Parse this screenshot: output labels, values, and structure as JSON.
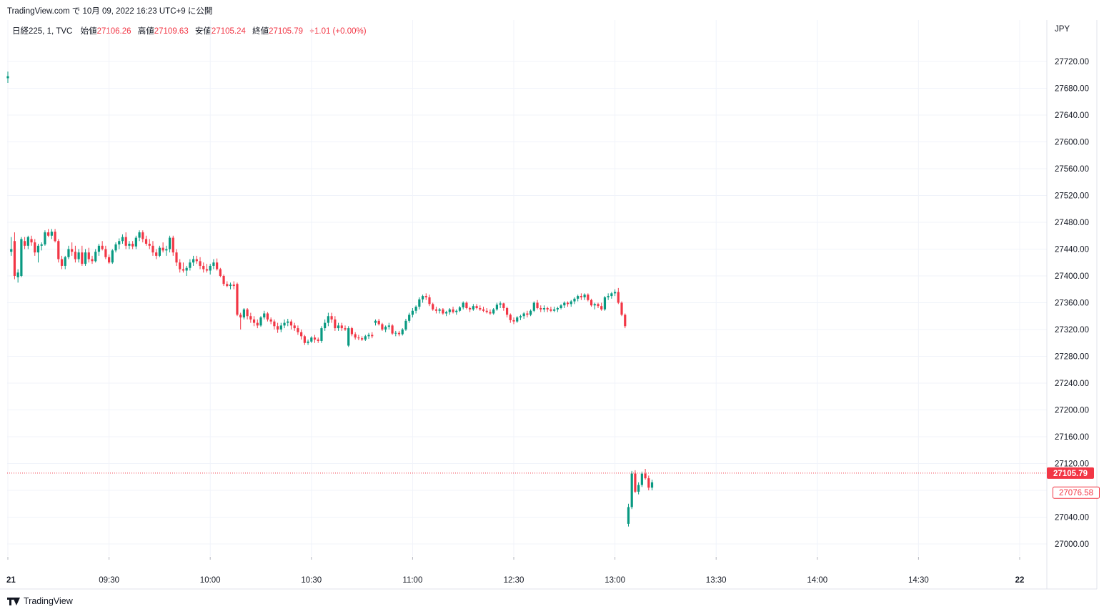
{
  "header": {
    "publish_line": "TradingView.com で 10月 09, 2022 16:23 UTC+9 に公開"
  },
  "legend": {
    "symbol": "日経225, 1, TVC",
    "open_label": "始値",
    "open_value": "27106.26",
    "high_label": "高値",
    "high_value": "27109.63",
    "low_label": "安値",
    "low_value": "27105.24",
    "close_label": "終値",
    "close_value": "27105.79",
    "change": "+1.01 (+0.00%)"
  },
  "axis": {
    "currency": "JPY"
  },
  "footer": {
    "brand": "TradingView"
  },
  "colors": {
    "up": "#089981",
    "down": "#f23645",
    "grid": "#f0f3fa",
    "text": "#131722"
  },
  "chart_data": {
    "type": "candlestick",
    "ylim": [
      26980,
      27760
    ],
    "y_ticks": [
      "27000.00",
      "27040.00",
      "27080.00",
      "27120.00",
      "27160.00",
      "27200.00",
      "27240.00",
      "27280.00",
      "27320.00",
      "27360.00",
      "27400.00",
      "27440.00",
      "27480.00",
      "27520.00",
      "27560.00",
      "27600.00",
      "27640.00",
      "27680.00",
      "27720.00"
    ],
    "x_ticks": [
      {
        "label": "21",
        "pos": 0,
        "bold": true
      },
      {
        "label": "09:30",
        "pos": 30
      },
      {
        "label": "10:00",
        "pos": 60
      },
      {
        "label": "10:30",
        "pos": 90
      },
      {
        "label": "11:00",
        "pos": 120
      },
      {
        "label": "12:30",
        "pos": 150
      },
      {
        "label": "13:00",
        "pos": 180
      },
      {
        "label": "13:30",
        "pos": 210
      },
      {
        "label": "14:00",
        "pos": 240
      },
      {
        "label": "14:30",
        "pos": 270
      },
      {
        "label": "22",
        "pos": 300,
        "bold": true
      }
    ],
    "last_price": {
      "value": 27105.79,
      "label": "27105.79"
    },
    "prev_close": {
      "value": 27076.58,
      "label": "27076.58"
    },
    "candles": [
      [
        27695,
        27705,
        27688,
        27698
      ],
      [
        27436,
        27458,
        27430,
        27440
      ],
      [
        27452,
        27465,
        27395,
        27400
      ],
      [
        27398,
        27410,
        27390,
        27405
      ],
      [
        27400,
        27458,
        27398,
        27455
      ],
      [
        27452,
        27458,
        27440,
        27445
      ],
      [
        27445,
        27460,
        27440,
        27458
      ],
      [
        27455,
        27460,
        27445,
        27450
      ],
      [
        27450,
        27455,
        27430,
        27435
      ],
      [
        27435,
        27448,
        27420,
        27445
      ],
      [
        27445,
        27450,
        27438,
        27447
      ],
      [
        27447,
        27468,
        27445,
        27465
      ],
      [
        27465,
        27470,
        27458,
        27460
      ],
      [
        27460,
        27470,
        27455,
        27466
      ],
      [
        27466,
        27470,
        27450,
        27452
      ],
      [
        27452,
        27455,
        27420,
        27425
      ],
      [
        27425,
        27430,
        27410,
        27415
      ],
      [
        27415,
        27430,
        27410,
        27428
      ],
      [
        27428,
        27445,
        27425,
        27440
      ],
      [
        27440,
        27450,
        27430,
        27436
      ],
      [
        27436,
        27445,
        27420,
        27425
      ],
      [
        27425,
        27440,
        27420,
        27435
      ],
      [
        27435,
        27445,
        27415,
        27418
      ],
      [
        27418,
        27440,
        27415,
        27435
      ],
      [
        27435,
        27442,
        27420,
        27425
      ],
      [
        27425,
        27430,
        27418,
        27422
      ],
      [
        27422,
        27440,
        27420,
        27436
      ],
      [
        27436,
        27448,
        27430,
        27445
      ],
      [
        27445,
        27452,
        27438,
        27440
      ],
      [
        27440,
        27445,
        27425,
        27428
      ],
      [
        27428,
        27432,
        27418,
        27420
      ],
      [
        27420,
        27440,
        27418,
        27438
      ],
      [
        27438,
        27450,
        27435,
        27447
      ],
      [
        27447,
        27456,
        27440,
        27452
      ],
      [
        27452,
        27462,
        27448,
        27458
      ],
      [
        27458,
        27465,
        27440,
        27445
      ],
      [
        27445,
        27452,
        27440,
        27448
      ],
      [
        27448,
        27452,
        27440,
        27444
      ],
      [
        27444,
        27460,
        27440,
        27457
      ],
      [
        27457,
        27468,
        27452,
        27465
      ],
      [
        27465,
        27468,
        27450,
        27455
      ],
      [
        27455,
        27460,
        27445,
        27448
      ],
      [
        27448,
        27455,
        27440,
        27445
      ],
      [
        27445,
        27452,
        27430,
        27435
      ],
      [
        27435,
        27440,
        27425,
        27430
      ],
      [
        27430,
        27445,
        27428,
        27442
      ],
      [
        27442,
        27450,
        27435,
        27438
      ],
      [
        27438,
        27445,
        27430,
        27440
      ],
      [
        27440,
        27460,
        27435,
        27457
      ],
      [
        27457,
        27460,
        27430,
        27435
      ],
      [
        27435,
        27440,
        27415,
        27420
      ],
      [
        27420,
        27425,
        27405,
        27410
      ],
      [
        27410,
        27420,
        27405,
        27408
      ],
      [
        27408,
        27415,
        27400,
        27412
      ],
      [
        27412,
        27425,
        27408,
        27420
      ],
      [
        27420,
        27430,
        27415,
        27425
      ],
      [
        27425,
        27430,
        27418,
        27422
      ],
      [
        27422,
        27428,
        27410,
        27415
      ],
      [
        27415,
        27420,
        27405,
        27410
      ],
      [
        27410,
        27418,
        27405,
        27408
      ],
      [
        27408,
        27418,
        27402,
        27415
      ],
      [
        27415,
        27425,
        27410,
        27420
      ],
      [
        27420,
        27426,
        27408,
        27410
      ],
      [
        27410,
        27412,
        27398,
        27400
      ],
      [
        27400,
        27402,
        27385,
        27388
      ],
      [
        27388,
        27392,
        27383,
        27385
      ],
      [
        27385,
        27390,
        27380,
        27387
      ],
      [
        27387,
        27392,
        27380,
        27385
      ],
      [
        27388,
        27390,
        27340,
        27342
      ],
      [
        27342,
        27345,
        27320,
        27338
      ],
      [
        27338,
        27352,
        27335,
        27350
      ],
      [
        27350,
        27352,
        27335,
        27340
      ],
      [
        27340,
        27345,
        27330,
        27335
      ],
      [
        27335,
        27340,
        27325,
        27330
      ],
      [
        27330,
        27335,
        27322,
        27326
      ],
      [
        27326,
        27340,
        27324,
        27338
      ],
      [
        27338,
        27348,
        27335,
        27344
      ],
      [
        27344,
        27346,
        27332,
        27335
      ],
      [
        27335,
        27338,
        27328,
        27332
      ],
      [
        27332,
        27335,
        27320,
        27325
      ],
      [
        27325,
        27330,
        27315,
        27320
      ],
      [
        27320,
        27330,
        27316,
        27326
      ],
      [
        27326,
        27335,
        27322,
        27330
      ],
      [
        27330,
        27336,
        27325,
        27332
      ],
      [
        27332,
        27335,
        27320,
        27326
      ],
      [
        27326,
        27330,
        27318,
        27322
      ],
      [
        27322,
        27326,
        27312,
        27316
      ],
      [
        27316,
        27320,
        27305,
        27310
      ],
      [
        27310,
        27312,
        27297,
        27300
      ],
      [
        27300,
        27305,
        27297,
        27302
      ],
      [
        27302,
        27310,
        27300,
        27308
      ],
      [
        27308,
        27312,
        27300,
        27305
      ],
      [
        27305,
        27308,
        27300,
        27303
      ],
      [
        27303,
        27325,
        27300,
        27322
      ],
      [
        27322,
        27335,
        27318,
        27330
      ],
      [
        27330,
        27345,
        27325,
        27340
      ],
      [
        27340,
        27345,
        27330,
        27335
      ],
      [
        27335,
        27340,
        27318,
        27322
      ],
      [
        27322,
        27330,
        27318,
        27326
      ],
      [
        27326,
        27330,
        27318,
        27322
      ],
      [
        27322,
        27326,
        27318,
        27320
      ],
      [
        27296,
        27325,
        27294,
        27322
      ],
      [
        27322,
        27324,
        27310,
        27313
      ],
      [
        27313,
        27316,
        27305,
        27308
      ],
      [
        27308,
        27312,
        27304,
        27307
      ],
      [
        27307,
        27310,
        27303,
        27305
      ],
      [
        27305,
        27312,
        27303,
        27310
      ],
      [
        27310,
        27315,
        27306,
        27312
      ],
      [
        27312,
        27316,
        27307,
        27310
      ],
      [
        27330,
        27335,
        27326,
        27333
      ],
      [
        27333,
        27336,
        27326,
        27328
      ],
      [
        27328,
        27330,
        27318,
        27320
      ],
      [
        27320,
        27326,
        27316,
        27324
      ],
      [
        27324,
        27330,
        27320,
        27326
      ],
      [
        27326,
        27328,
        27312,
        27314
      ],
      [
        27314,
        27318,
        27310,
        27315
      ],
      [
        27315,
        27318,
        27310,
        27313
      ],
      [
        27313,
        27322,
        27311,
        27320
      ],
      [
        27320,
        27336,
        27318,
        27333
      ],
      [
        27333,
        27345,
        27330,
        27342
      ],
      [
        27342,
        27352,
        27338,
        27348
      ],
      [
        27348,
        27356,
        27344,
        27354
      ],
      [
        27354,
        27368,
        27350,
        27365
      ],
      [
        27365,
        27372,
        27360,
        27370
      ],
      [
        27370,
        27374,
        27364,
        27368
      ],
      [
        27368,
        27372,
        27355,
        27358
      ],
      [
        27358,
        27360,
        27348,
        27350
      ],
      [
        27350,
        27354,
        27344,
        27348
      ],
      [
        27348,
        27352,
        27344,
        27350
      ],
      [
        27350,
        27352,
        27342,
        27344
      ],
      [
        27344,
        27348,
        27340,
        27346
      ],
      [
        27346,
        27352,
        27342,
        27350
      ],
      [
        27350,
        27354,
        27344,
        27346
      ],
      [
        27346,
        27350,
        27342,
        27348
      ],
      [
        27348,
        27355,
        27346,
        27353
      ],
      [
        27353,
        27362,
        27350,
        27360
      ],
      [
        27360,
        27362,
        27350,
        27352
      ],
      [
        27352,
        27354,
        27346,
        27350
      ],
      [
        27350,
        27358,
        27348,
        27355
      ],
      [
        27355,
        27358,
        27350,
        27352
      ],
      [
        27352,
        27356,
        27348,
        27350
      ],
      [
        27350,
        27354,
        27346,
        27348
      ],
      [
        27348,
        27352,
        27344,
        27346
      ],
      [
        27346,
        27350,
        27342,
        27344
      ],
      [
        27344,
        27352,
        27342,
        27350
      ],
      [
        27350,
        27360,
        27348,
        27357
      ],
      [
        27357,
        27362,
        27352,
        27359
      ],
      [
        27359,
        27360,
        27348,
        27352
      ],
      [
        27352,
        27354,
        27338,
        27342
      ],
      [
        27342,
        27344,
        27330,
        27334
      ],
      [
        27334,
        27338,
        27328,
        27332
      ],
      [
        27332,
        27340,
        27330,
        27338
      ],
      [
        27338,
        27342,
        27334,
        27340
      ],
      [
        27340,
        27346,
        27336,
        27344
      ],
      [
        27344,
        27348,
        27338,
        27342
      ],
      [
        27342,
        27350,
        27340,
        27348
      ],
      [
        27348,
        27362,
        27346,
        27360
      ],
      [
        27360,
        27364,
        27350,
        27352
      ],
      [
        27352,
        27356,
        27346,
        27350
      ],
      [
        27350,
        27356,
        27346,
        27352
      ],
      [
        27352,
        27354,
        27346,
        27350
      ],
      [
        27350,
        27354,
        27346,
        27348
      ],
      [
        27348,
        27354,
        27346,
        27350
      ],
      [
        27350,
        27354,
        27346,
        27352
      ],
      [
        27352,
        27358,
        27350,
        27356
      ],
      [
        27356,
        27362,
        27352,
        27360
      ],
      [
        27360,
        27362,
        27354,
        27358
      ],
      [
        27358,
        27364,
        27354,
        27362
      ],
      [
        27362,
        27368,
        27358,
        27366
      ],
      [
        27366,
        27372,
        27362,
        27370
      ],
      [
        27370,
        27374,
        27364,
        27368
      ],
      [
        27368,
        27374,
        27364,
        27372
      ],
      [
        27372,
        27374,
        27362,
        27364
      ],
      [
        27364,
        27366,
        27354,
        27356
      ],
      [
        27356,
        27360,
        27350,
        27358
      ],
      [
        27358,
        27360,
        27352,
        27355
      ],
      [
        27355,
        27360,
        27348,
        27350
      ],
      [
        27350,
        27370,
        27348,
        27368
      ],
      [
        27368,
        27374,
        27364,
        27370
      ],
      [
        27370,
        27376,
        27366,
        27374
      ],
      [
        27374,
        27380,
        27370,
        27376
      ],
      [
        27376,
        27382,
        27358,
        27360
      ],
      [
        27360,
        27362,
        27340,
        27342
      ],
      [
        27342,
        27344,
        27322,
        27325
      ],
      [
        27030,
        27060,
        27026,
        27055
      ],
      [
        27055,
        27109,
        27052,
        27105
      ],
      [
        27105,
        27110,
        27076,
        27078
      ],
      [
        27078,
        27092,
        27074,
        27088
      ],
      [
        27088,
        27108,
        27085,
        27105
      ],
      [
        27105,
        27112,
        27096,
        27098
      ],
      [
        27098,
        27102,
        27080,
        27084
      ],
      [
        27084,
        27096,
        27080,
        27092
      ]
    ]
  }
}
